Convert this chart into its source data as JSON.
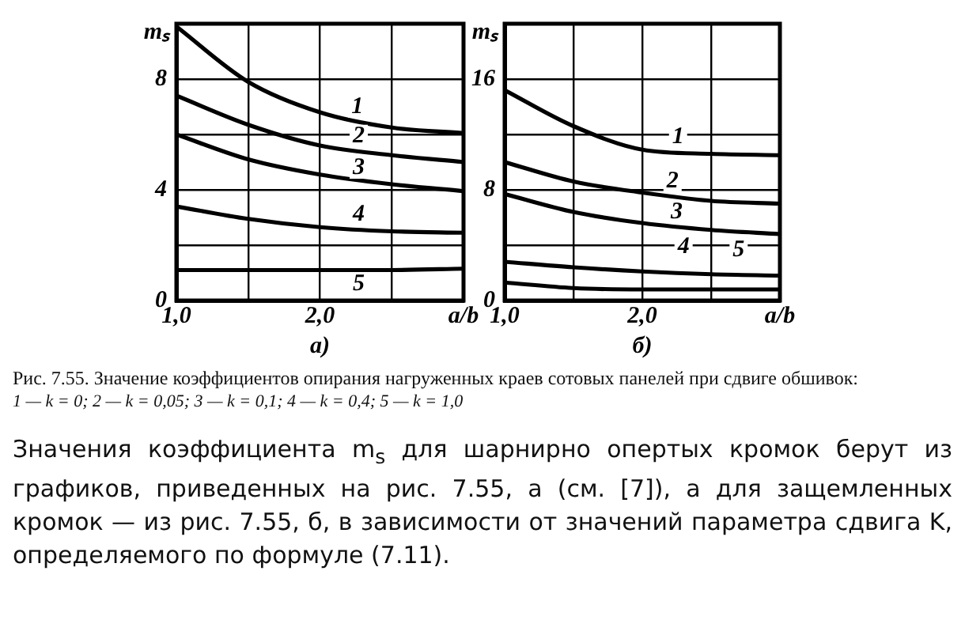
{
  "chart_data": [
    {
      "type": "line",
      "xlabel": "а)",
      "ylabel": "mₛ",
      "marker": "none",
      "grid": true,
      "x": [
        1.0,
        1.5,
        2.0,
        2.5,
        3.0
      ],
      "xlim": [
        1,
        3
      ],
      "xticks": [
        {
          "value": 1,
          "label": "1,0"
        },
        {
          "value": 1.5,
          "label": null
        },
        {
          "value": 2,
          "label": "2,0"
        },
        {
          "value": 2.5,
          "label": null
        },
        {
          "value": 3,
          "label": "a/b"
        }
      ],
      "ylim": [
        0,
        10
      ],
      "yticks": [
        0,
        {
          "value": 2,
          "label": null
        },
        4,
        {
          "value": 6,
          "label": null
        },
        8,
        {
          "value": 10,
          "label": null
        }
      ],
      "series": [
        {
          "color": "#000000",
          "values": [
            9.9,
            7.9,
            6.8,
            6.25,
            6.05
          ]
        },
        {
          "color": "#000000",
          "values": [
            7.4,
            6.35,
            5.6,
            5.25,
            5.0
          ]
        },
        {
          "color": "#000000",
          "values": [
            6.0,
            5.1,
            4.55,
            4.2,
            3.95
          ]
        },
        {
          "color": "#000000",
          "values": [
            3.4,
            2.95,
            2.65,
            2.5,
            2.45
          ]
        },
        {
          "color": "#000000",
          "values": [
            1.1,
            1.1,
            1.1,
            1.1,
            1.15
          ]
        }
      ],
      "annotations": [
        {
          "text": "1",
          "x": 2.26,
          "y": 7.0
        },
        {
          "text": "2",
          "x": 2.27,
          "y": 5.95
        },
        {
          "text": "3",
          "x": 2.27,
          "y": 4.8
        },
        {
          "text": "4",
          "x": 2.27,
          "y": 3.1
        },
        {
          "text": "5",
          "x": 2.27,
          "y": 0.6
        },
        "Рис. 7.55. Значение коэффициентов опирания нагруженных краев сотовых панелей при сдвиге обшивок:",
        "1 — k = 0; 2 — k = 0,05; 3 — k = 0,1; 4 — k = 0,4; 5 — k = 1,0",
        "Значения коэффициента m$_{s}$ для шарнирно опертых кромок берут из графиков, приведенных на рис. 7.55, а (см. [7]), а для защемленных кромок — из рис. 7.55, б, в зависимости от значений параметра сдвига K, определяемого по формуле (7.11)."
      ]
    },
    {
      "type": "line",
      "xlabel": "б)",
      "ylabel": "mₛ",
      "marker": "none",
      "grid": true,
      "x": [
        1.0,
        1.5,
        2.0,
        2.5,
        3.0
      ],
      "xlim": [
        1,
        3
      ],
      "xticks": [
        {
          "value": 1,
          "label": "1,0"
        },
        {
          "value": 1.5,
          "label": null
        },
        {
          "value": 2,
          "label": "2,0"
        },
        {
          "value": 2.5,
          "label": null
        },
        {
          "value": 3,
          "label": "a/b"
        }
      ],
      "ylim": [
        0,
        20
      ],
      "yticks": [
        0,
        {
          "value": 4,
          "label": null
        },
        8,
        {
          "value": 12,
          "label": null
        },
        16,
        {
          "value": 20,
          "label": null
        }
      ],
      "series": [
        {
          "color": "#000000",
          "values": [
            15.2,
            12.6,
            10.9,
            10.6,
            10.5
          ]
        },
        {
          "color": "#000000",
          "values": [
            10.0,
            8.6,
            7.8,
            7.2,
            7.0
          ]
        },
        {
          "color": "#000000",
          "values": [
            7.7,
            6.4,
            5.6,
            5.1,
            4.8
          ]
        },
        {
          "color": "#000000",
          "values": [
            2.8,
            2.4,
            2.1,
            1.9,
            1.8
          ]
        },
        {
          "color": "#000000",
          "values": [
            1.3,
            0.9,
            0.8,
            0.8,
            0.8
          ]
        }
      ],
      "annotations": [
        {
          "text": "1",
          "x": 2.26,
          "y": 11.8
        },
        {
          "text": "2",
          "x": 2.22,
          "y": 8.6
        },
        {
          "text": "3",
          "x": 2.25,
          "y": 6.4
        },
        {
          "text": "4",
          "x": 2.3,
          "y": 3.85
        },
        {
          "text": "5",
          "x": 2.7,
          "y": 3.66
        }
      ]
    }
  ]
}
